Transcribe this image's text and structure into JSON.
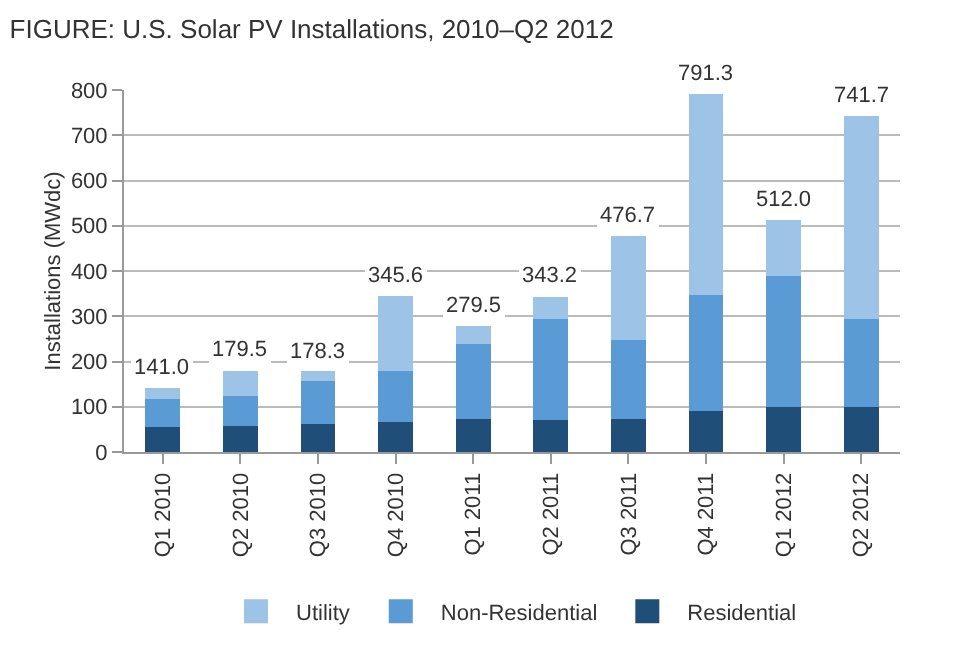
{
  "chart_data": {
    "type": "bar",
    "title": "FIGURE: U.S. Solar PV Installations, 2010–Q2 2012",
    "ylabel": "Installations (MWdc)",
    "categories": [
      "Q1 2010",
      "Q2 2010",
      "Q3 2010",
      "Q4 2010",
      "Q1 2011",
      "Q2 2011",
      "Q3 2011",
      "Q4 2011",
      "Q1 2012",
      "Q2 2012"
    ],
    "series": [
      {
        "name": "Residential",
        "color": "#1f4e79",
        "values": [
          56,
          58,
          62,
          66,
          73,
          71,
          74,
          91,
          99,
          99
        ]
      },
      {
        "name": "Non-Residential",
        "color": "#5b9bd5",
        "values": [
          61,
          65,
          94,
          112,
          165,
          222,
          173,
          256,
          290,
          194
        ]
      },
      {
        "name": "Utility",
        "color": "#9dc3e6",
        "values": [
          24,
          56.5,
          22.3,
          167.6,
          41.5,
          50.2,
          229.7,
          444.3,
          123,
          448.7
        ]
      }
    ],
    "stacked": true,
    "totals": [
      "141.0",
      "179.5",
      "178.3",
      "345.6",
      "279.5",
      "343.2",
      "476.7",
      "791.3",
      "512.0",
      "741.7"
    ],
    "ylim": [
      0,
      800
    ],
    "yticks": [
      0,
      100,
      200,
      300,
      400,
      500,
      600,
      700,
      800
    ],
    "grid": "y",
    "legend": "bottom"
  }
}
